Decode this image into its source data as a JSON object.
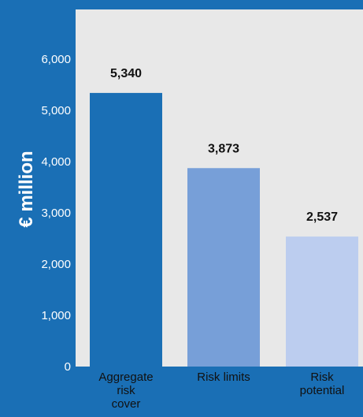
{
  "chart_data": {
    "type": "bar",
    "ylabel": "€ million",
    "categories": [
      "Aggregate risk cover",
      "Risk limits",
      "Risk potential"
    ],
    "category_lines": [
      [
        "Aggregate",
        "risk",
        "cover"
      ],
      [
        "Risk limits"
      ],
      [
        "Risk",
        "potential"
      ]
    ],
    "values": [
      5340,
      3873,
      2537
    ],
    "value_labels": [
      "5,340",
      "3,873",
      "2,537"
    ],
    "colors": [
      "#1a6fb5",
      "#779fd8",
      "#bccdef"
    ],
    "ylim": [
      0,
      6000
    ],
    "yticks": [
      0,
      1000,
      2000,
      3000,
      4000,
      5000,
      6000
    ],
    "ytick_labels": [
      "0",
      "1,000",
      "2,000",
      "3,000",
      "4,000",
      "5,000",
      "6,000"
    ],
    "grid": false,
    "legend": "none"
  }
}
